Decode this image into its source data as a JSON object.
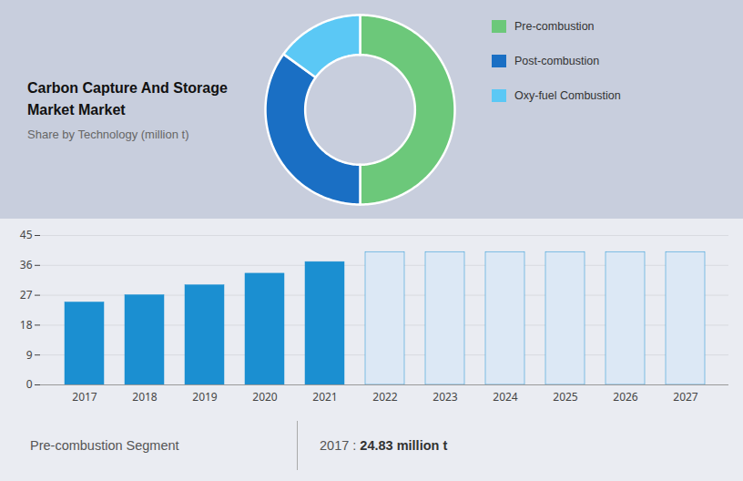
{
  "chart_data": [
    {
      "type": "pie",
      "title": "Carbon Capture And Storage\nMarket Market",
      "subtitle": "Share by Technology (million t)",
      "categories": [
        "Pre-combustion",
        "Post-combustion",
        "Oxy-fuel Combustion"
      ],
      "values": [
        50,
        35,
        15
      ],
      "colors": [
        "#6cc87a",
        "#1a6fc4",
        "#5bc8f5"
      ],
      "legend": "right"
    },
    {
      "type": "bar",
      "categories": [
        "2017",
        "2018",
        "2019",
        "2020",
        "2021",
        "2022",
        "2023",
        "2024",
        "2025",
        "2026",
        "2027"
      ],
      "values": [
        24.83,
        27.0,
        30.0,
        33.5,
        37.0,
        40.0,
        40.0,
        40.0,
        40.0,
        40.0,
        40.0
      ],
      "colors": [
        "#1b8fd1",
        "#1b8fd1",
        "#1b8fd1",
        "#1b8fd1",
        "#1b8fd1",
        "#dce8f5",
        "#dce8f5",
        "#dce8f5",
        "#dce8f5",
        "#dce8f5",
        "#dce8f5"
      ],
      "ylim": [
        0,
        45
      ],
      "yticks": [
        0,
        9,
        18,
        27,
        36,
        45
      ],
      "grid": true,
      "annotations": [
        "Pre-combustion Segment",
        "2017 : ",
        "24.83 million t"
      ]
    }
  ]
}
